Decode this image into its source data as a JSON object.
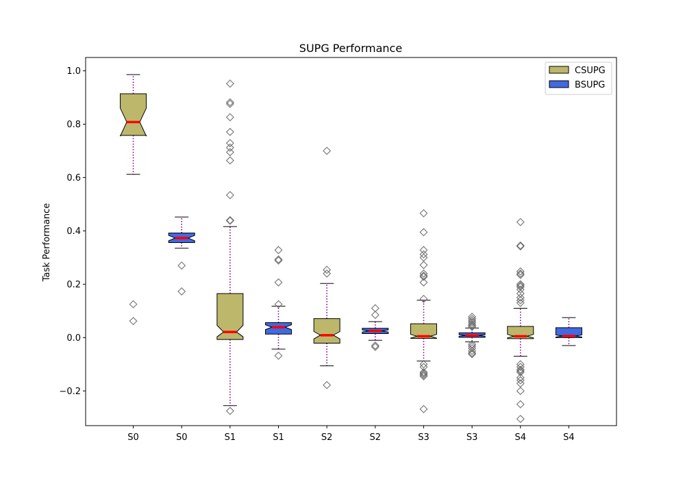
{
  "chart_data": {
    "type": "box",
    "title": "SUPG Performance",
    "xlabel": "",
    "ylabel": "Task Performance",
    "ylim": [
      -0.33,
      1.05
    ],
    "yticks": [
      -0.2,
      0.0,
      0.2,
      0.4,
      0.6,
      0.8,
      1.0
    ],
    "ytick_labels": [
      "−0.2",
      "0.0",
      "0.2",
      "0.4",
      "0.6",
      "0.8",
      "1.0"
    ],
    "legend_position": "top-right",
    "legend": [
      {
        "name": "CSUPG",
        "color": "#bdb76b"
      },
      {
        "name": "BSUPG",
        "color": "#4169e1"
      }
    ],
    "median_color": "#ff0000",
    "whisker_color": "#800080",
    "categories": [
      "S0",
      "S0",
      "S1",
      "S1",
      "S2",
      "S2",
      "S3",
      "S3",
      "S4",
      "S4"
    ],
    "boxes": [
      {
        "label": "S0",
        "series": "CSUPG",
        "q1": 0.758,
        "median": 0.808,
        "q3": 0.914,
        "notch_lo": 0.755,
        "notch_hi": 0.86,
        "whisker_lo": 0.612,
        "whisker_hi": 0.986,
        "outliers": [
          0.125,
          0.062
        ]
      },
      {
        "label": "S0",
        "series": "BSUPG",
        "q1": 0.356,
        "median": 0.373,
        "q3": 0.392,
        "notch_lo": 0.363,
        "notch_hi": 0.383,
        "whisker_lo": 0.335,
        "whisker_hi": 0.452,
        "outliers": [
          0.27,
          0.173
        ]
      },
      {
        "label": "S1",
        "series": "CSUPG",
        "q1": -0.007,
        "median": 0.021,
        "q3": 0.165,
        "notch_lo": 0.003,
        "notch_hi": 0.046,
        "whisker_lo": -0.255,
        "whisker_hi": 0.416,
        "outliers": [
          0.952,
          0.882,
          0.876,
          0.826,
          0.771,
          0.729,
          0.712,
          0.695,
          0.664,
          0.534,
          0.44,
          0.438,
          -0.275
        ]
      },
      {
        "label": "S1",
        "series": "BSUPG",
        "q1": 0.013,
        "median": 0.039,
        "q3": 0.056,
        "notch_lo": 0.03,
        "notch_hi": 0.048,
        "whisker_lo": -0.043,
        "whisker_hi": 0.118,
        "outliers": [
          0.328,
          0.293,
          0.289,
          0.207,
          0.125,
          -0.068
        ]
      },
      {
        "label": "S2",
        "series": "CSUPG",
        "q1": -0.021,
        "median": 0.009,
        "q3": 0.071,
        "notch_lo": -0.005,
        "notch_hi": 0.023,
        "whisker_lo": -0.106,
        "whisker_hi": 0.203,
        "outliers": [
          0.7,
          0.254,
          0.24,
          -0.178
        ]
      },
      {
        "label": "S2",
        "series": "BSUPG",
        "q1": 0.015,
        "median": 0.025,
        "q3": 0.035,
        "notch_lo": 0.021,
        "notch_hi": 0.029,
        "whisker_lo": -0.01,
        "whisker_hi": 0.06,
        "outliers": [
          0.11,
          0.085,
          -0.03,
          -0.035
        ]
      },
      {
        "label": "S3",
        "series": "CSUPG",
        "q1": -0.003,
        "median": 0.005,
        "q3": 0.052,
        "notch_lo": -0.002,
        "notch_hi": 0.012,
        "whisker_lo": -0.088,
        "whisker_hi": 0.14,
        "outliers": [
          0.466,
          0.395,
          0.328,
          0.312,
          0.3,
          0.272,
          0.24,
          0.232,
          0.228,
          0.207,
          0.145,
          -0.1,
          -0.11,
          -0.13,
          -0.135,
          -0.14,
          -0.145,
          -0.268
        ]
      },
      {
        "label": "S3",
        "series": "BSUPG",
        "q1": 0.001,
        "median": 0.008,
        "q3": 0.018,
        "notch_lo": 0.005,
        "notch_hi": 0.011,
        "whisker_lo": -0.016,
        "whisker_hi": 0.036,
        "outliers": [
          0.078,
          0.07,
          0.063,
          0.057,
          0.05,
          0.045,
          0.04,
          -0.025,
          -0.032,
          -0.04,
          -0.05,
          -0.058,
          -0.062
        ]
      },
      {
        "label": "S4",
        "series": "CSUPG",
        "q1": -0.004,
        "median": 0.005,
        "q3": 0.042,
        "notch_lo": -0.001,
        "notch_hi": 0.012,
        "whisker_lo": -0.07,
        "whisker_hi": 0.11,
        "outliers": [
          0.433,
          0.345,
          0.342,
          0.248,
          0.24,
          0.235,
          0.2,
          0.195,
          0.19,
          0.18,
          0.165,
          0.15,
          0.14,
          0.13,
          -0.1,
          -0.11,
          -0.12,
          -0.125,
          -0.13,
          -0.15,
          -0.16,
          -0.172,
          -0.2,
          -0.25,
          -0.305
        ]
      },
      {
        "label": "S4",
        "series": "BSUPG",
        "q1": 0.0,
        "median": 0.006,
        "q3": 0.037,
        "notch_lo": 0.002,
        "notch_hi": 0.01,
        "whisker_lo": -0.03,
        "whisker_hi": 0.075,
        "outliers": []
      }
    ]
  }
}
